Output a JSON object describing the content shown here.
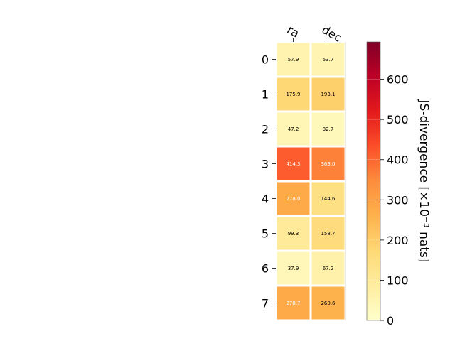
{
  "chart_data": {
    "type": "heatmap",
    "title": "",
    "columns": [
      "ra",
      "dec"
    ],
    "rows": [
      "0",
      "1",
      "2",
      "3",
      "4",
      "5",
      "6",
      "7"
    ],
    "values": [
      [
        57.9,
        53.7
      ],
      [
        175.9,
        193.1
      ],
      [
        47.2,
        32.7
      ],
      [
        414.3,
        363.0
      ],
      [
        278.0,
        144.6
      ],
      [
        99.3,
        158.7
      ],
      [
        37.9,
        67.2
      ],
      [
        278.7,
        260.6
      ]
    ],
    "value_labels": [
      [
        "57.9",
        "53.7"
      ],
      [
        "175.9",
        "193.1"
      ],
      [
        "47.2",
        "32.7"
      ],
      [
        "414.3",
        "363.0"
      ],
      [
        "278.0",
        "144.6"
      ],
      [
        "99.3",
        "158.7"
      ],
      [
        "37.9",
        "67.2"
      ],
      [
        "278.7",
        "260.6"
      ]
    ],
    "colormap": "YlOrRd",
    "colorbar": {
      "label": "JS-divergence [×10⁻³ nats]",
      "vmin": 0,
      "vmax": 693,
      "ticks": [
        0,
        100,
        200,
        300,
        400,
        500,
        600
      ],
      "tick_labels": [
        "0",
        "100",
        "200",
        "300",
        "400",
        "500",
        "600"
      ]
    },
    "grid": false
  }
}
